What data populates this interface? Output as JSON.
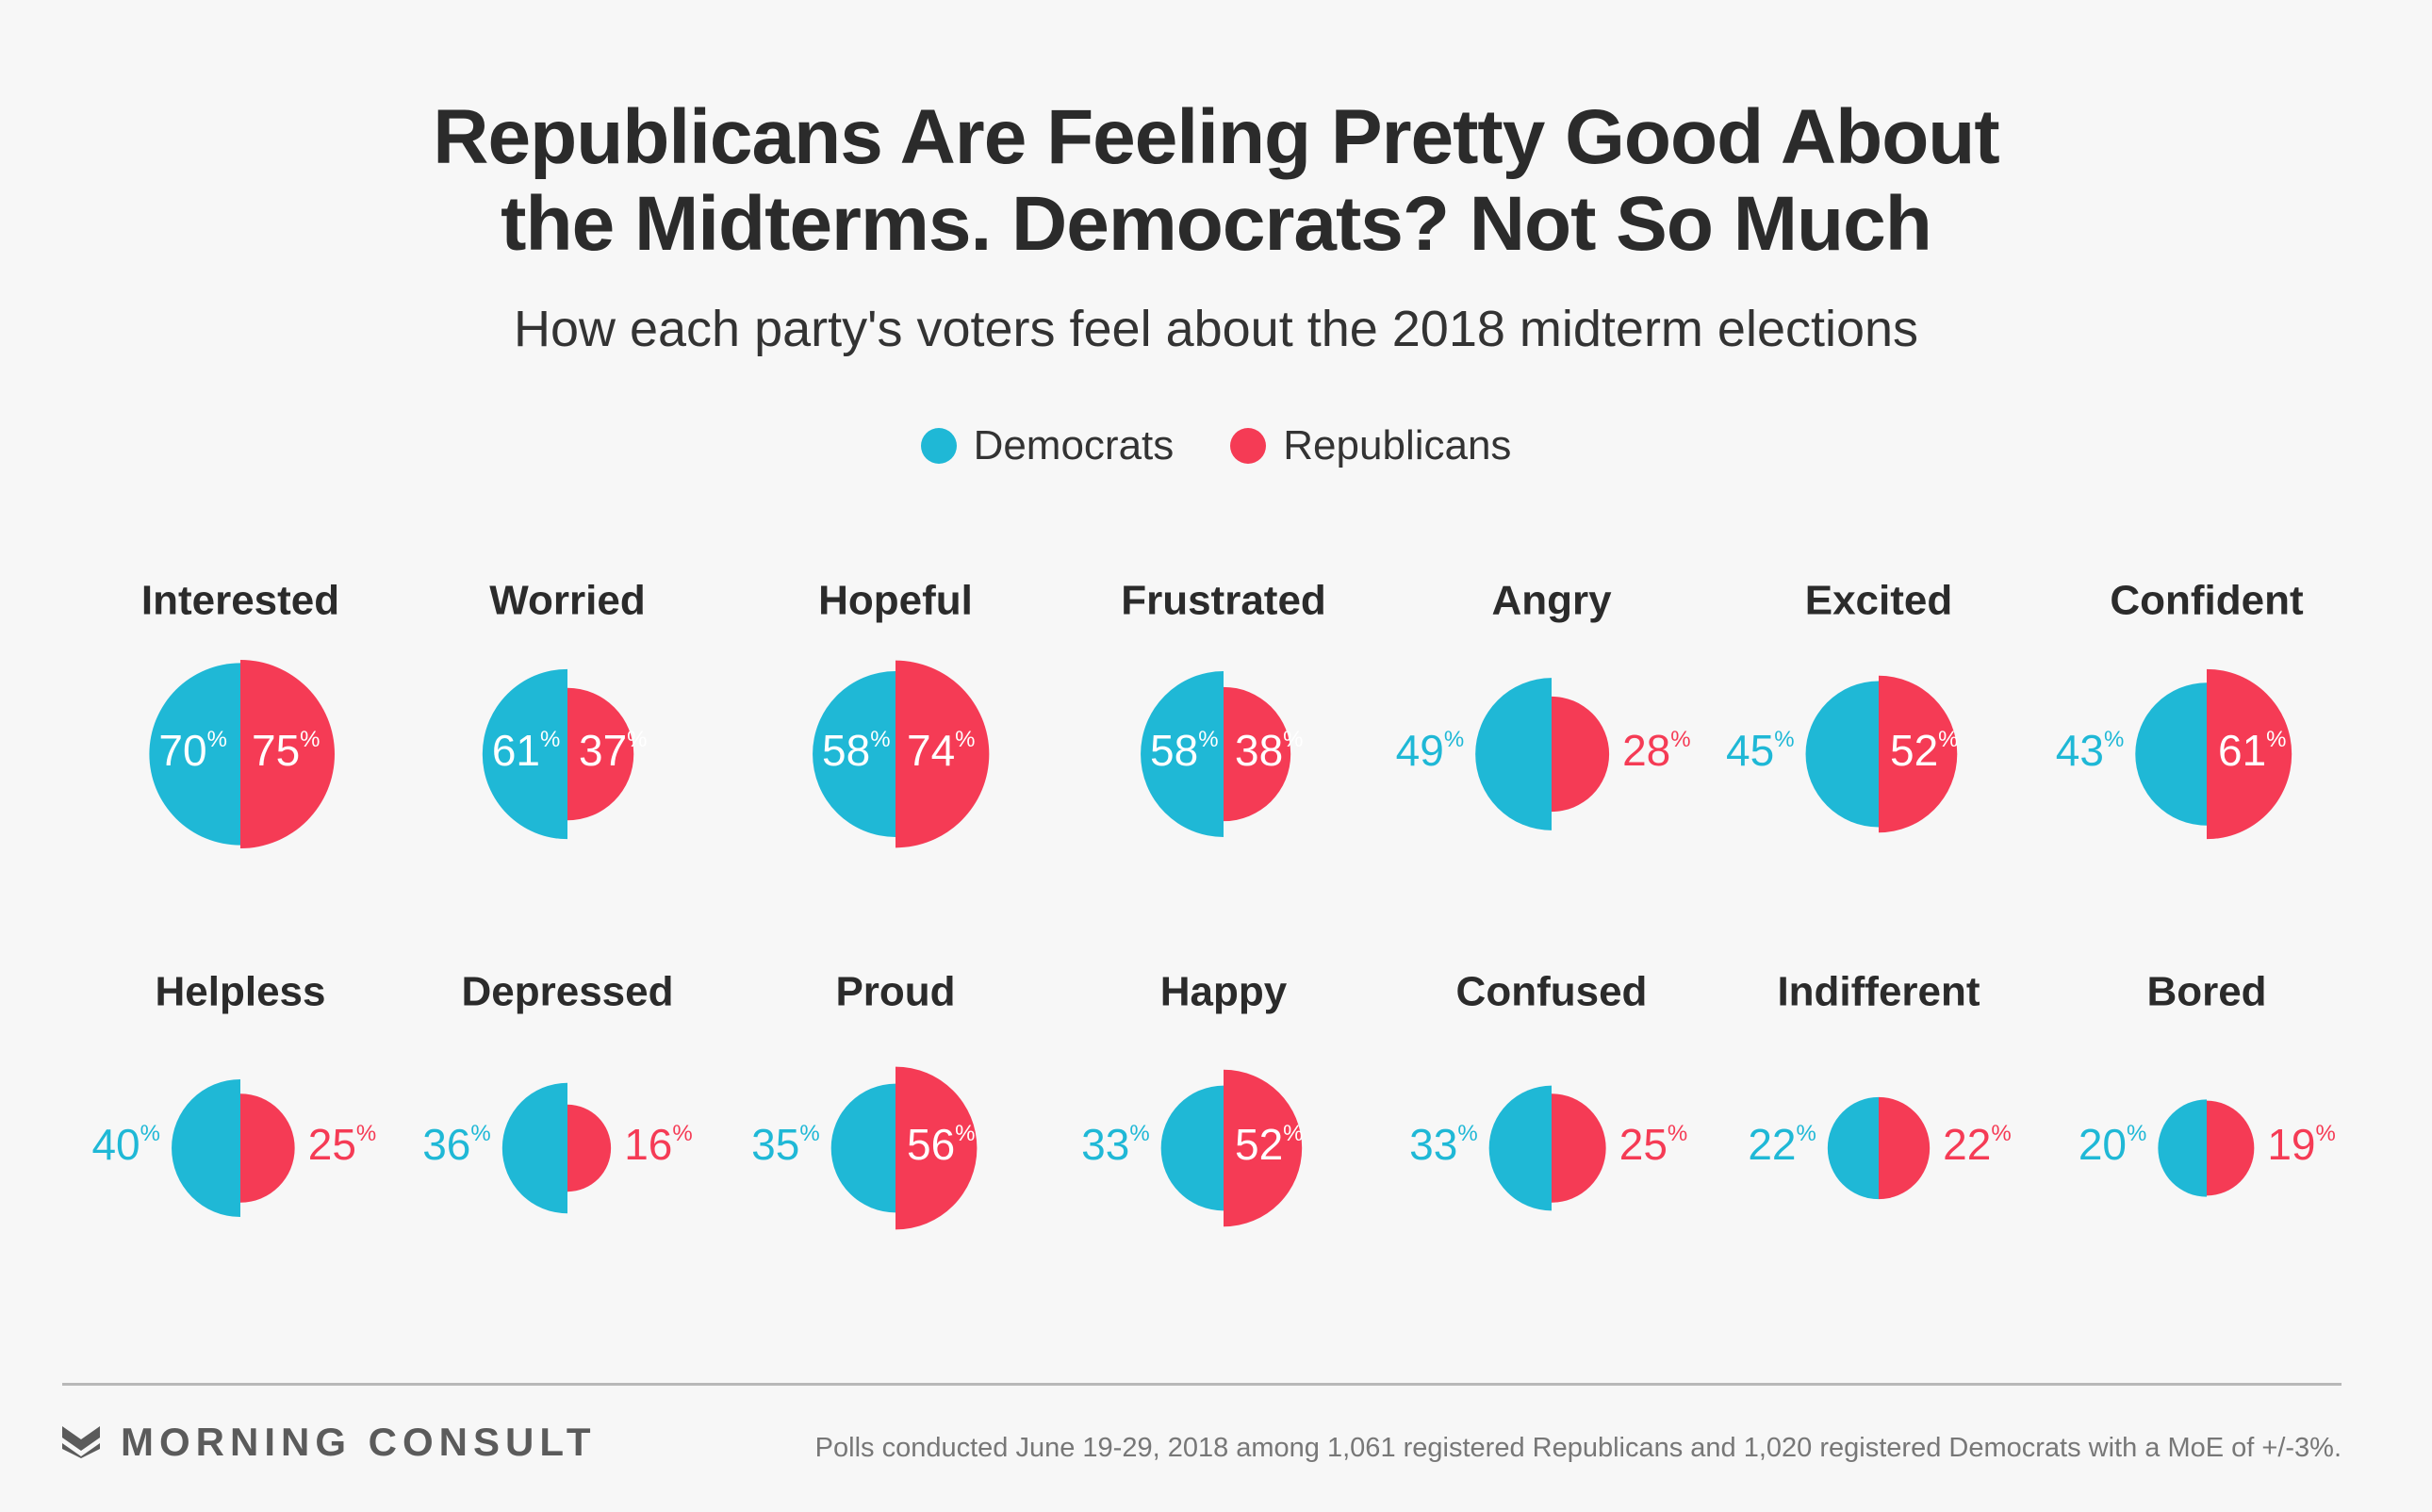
{
  "title_line1": "Republicans Are Feeling Pretty Good About",
  "title_line2": "the Midterms. Democrats? Not So Much",
  "subtitle": "How each party's voters feel about the 2018 midterm elections",
  "colors": {
    "democrats": "#1fb8d6",
    "republicans": "#f53b55"
  },
  "footer": {
    "brand": "MORNING CONSULT",
    "source": "Polls conducted June 19-29, 2018 among 1,061 registered Republicans and 1,020 registered Democrats with a MoE of +/-3%."
  },
  "chart_data": {
    "type": "half-circle comparison",
    "unit": "%",
    "legend": [
      "Democrats",
      "Republicans"
    ],
    "legend_placement": "top-center",
    "series": [
      {
        "name": "Democrats"
      },
      {
        "name": "Republicans"
      }
    ],
    "categories": [
      "Interested",
      "Worried",
      "Hopeful",
      "Frustrated",
      "Angry",
      "Excited",
      "Confident",
      "Helpless",
      "Depressed",
      "Proud",
      "Happy",
      "Confused",
      "Indifferent",
      "Bored"
    ],
    "democrats": [
      70,
      61,
      58,
      58,
      49,
      45,
      43,
      40,
      36,
      35,
      33,
      33,
      22,
      20
    ],
    "republicans": [
      75,
      37,
      74,
      38,
      28,
      52,
      61,
      25,
      16,
      56,
      52,
      25,
      22,
      19
    ]
  }
}
